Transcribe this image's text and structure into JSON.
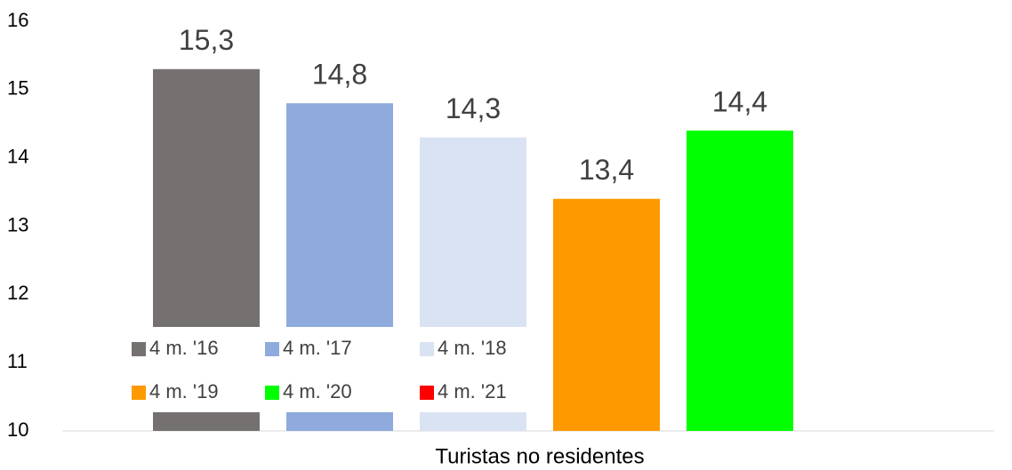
{
  "chart_data": {
    "type": "bar",
    "xlabel": "Turistas no residentes",
    "categories": [
      "Turistas no residentes"
    ],
    "series": [
      {
        "name": "4 m. '16",
        "color": "#767171",
        "values": [
          15.3
        ],
        "value_labels": [
          "15,3"
        ]
      },
      {
        "name": "4 m. '17",
        "color": "#8faadc",
        "values": [
          14.8
        ],
        "value_labels": [
          "14,8"
        ]
      },
      {
        "name": "4 m. '18",
        "color": "#dae3f3",
        "values": [
          14.3
        ],
        "value_labels": [
          "14,3"
        ]
      },
      {
        "name": "4 m. '19",
        "color": "#ff9900",
        "values": [
          13.4
        ],
        "value_labels": [
          "13,4"
        ]
      },
      {
        "name": "4 m. '20",
        "color": "#00ff00",
        "values": [
          14.4
        ],
        "value_labels": [
          "14,4"
        ]
      },
      {
        "name": "4 m. '21",
        "color": "#ff0000",
        "values": [
          null
        ],
        "value_labels": [
          null
        ]
      }
    ],
    "ylim": [
      10,
      16
    ],
    "yticks": [
      10,
      11,
      12,
      13,
      14,
      15,
      16
    ],
    "grid": false
  }
}
